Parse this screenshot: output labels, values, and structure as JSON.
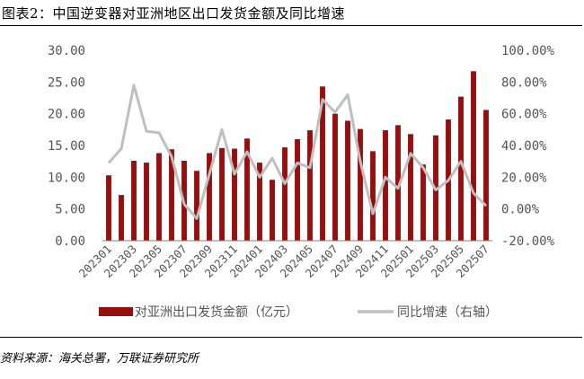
{
  "header": {
    "title": "图表2：中国逆变器对亚洲地区出口发货金额及同比增速"
  },
  "footer": {
    "source": "资料来源：海关总署，万联证券研究所"
  },
  "colors": {
    "bar": "#9b0d0d",
    "line": "#bfbfbf"
  },
  "chart_data": {
    "type": "bar",
    "title": "中国逆变器对亚洲地区出口发货金额及同比增速",
    "x": [
      "202301",
      "202302",
      "202303",
      "202304",
      "202305",
      "202306",
      "202307",
      "202308",
      "202309",
      "202310",
      "202311",
      "202312",
      "202401",
      "202402",
      "202403",
      "202404",
      "202405",
      "202406",
      "202407",
      "202408",
      "202409",
      "202410",
      "202411",
      "202412",
      "202501",
      "202502",
      "202503",
      "202504",
      "202505",
      "202506",
      "202507"
    ],
    "x_tick_labels": [
      "202301",
      "202303",
      "202305",
      "202307",
      "202309",
      "202311",
      "202401",
      "202403",
      "202405",
      "202407",
      "202409",
      "202411",
      "202501",
      "202503",
      "202505",
      "202507"
    ],
    "y_left": {
      "ticks": [
        "0.00",
        "5.00",
        "10.00",
        "15.00",
        "20.00",
        "25.00",
        "30.00"
      ],
      "lim": [
        0,
        30
      ]
    },
    "y_right": {
      "ticks": [
        "-20.00%",
        "0.00%",
        "20.00%",
        "40.00%",
        "60.00%",
        "80.00%",
        "100.00%"
      ],
      "lim": [
        -20,
        100
      ]
    },
    "series": [
      {
        "name": "对亚洲出口发货金额（亿元）",
        "type": "bar",
        "axis": "left",
        "values": [
          10.3,
          7.2,
          12.6,
          12.3,
          13.8,
          14.4,
          12.6,
          11.0,
          13.8,
          14.6,
          14.5,
          16.1,
          12.3,
          9.6,
          14.7,
          16.0,
          17.4,
          24.3,
          20.0,
          18.9,
          17.6,
          14.1,
          17.4,
          18.2,
          16.8,
          12.0,
          16.6,
          19.1,
          22.7,
          26.7,
          20.6
        ]
      },
      {
        "name": "同比增速（右轴）",
        "type": "line",
        "axis": "right",
        "values": [
          29,
          38,
          78,
          49,
          48,
          33,
          3,
          -6,
          22,
          50,
          22,
          36,
          20,
          32,
          16,
          29,
          26,
          69,
          61,
          72,
          30,
          -3,
          20,
          13,
          35,
          26,
          12,
          18,
          30,
          10,
          2
        ]
      }
    ],
    "legend_position": "bottom",
    "grid": false
  }
}
